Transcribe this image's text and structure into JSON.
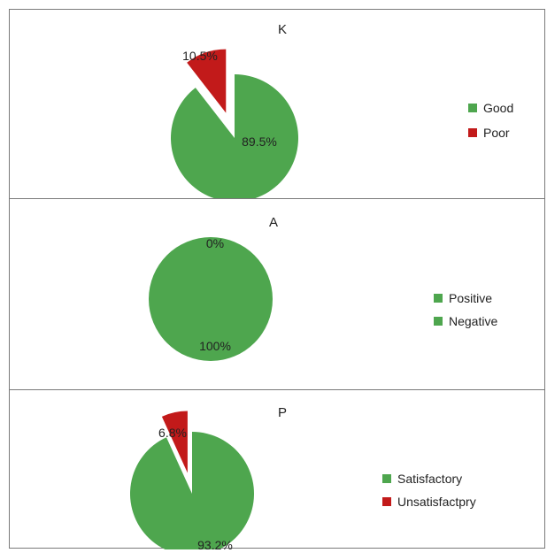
{
  "chart_data": [
    {
      "type": "pie",
      "title": "K",
      "labels": [
        "Good",
        "Poor"
      ],
      "values": [
        89.5,
        10.5
      ],
      "data_labels": [
        "89.5%",
        "10.5%"
      ],
      "colors": [
        "#4ea64e",
        "#c21a1a"
      ],
      "exploded": [
        false,
        true
      ],
      "legend": "right"
    },
    {
      "type": "pie",
      "title": "A",
      "labels": [
        "Positive",
        "Negative"
      ],
      "values": [
        100,
        0
      ],
      "data_labels": [
        "100%",
        "0%"
      ],
      "colors": [
        "#4ea64e",
        "#4ea64e"
      ],
      "exploded": [
        false,
        false
      ],
      "legend": "right"
    },
    {
      "type": "pie",
      "title": "P",
      "labels": [
        "Satisfactory",
        "Unsatisfactpry"
      ],
      "values": [
        93.2,
        6.8
      ],
      "data_labels": [
        "93.2%",
        "6.8%"
      ],
      "colors": [
        "#4ea64e",
        "#c21a1a"
      ],
      "exploded": [
        false,
        true
      ],
      "legend": "right"
    }
  ]
}
